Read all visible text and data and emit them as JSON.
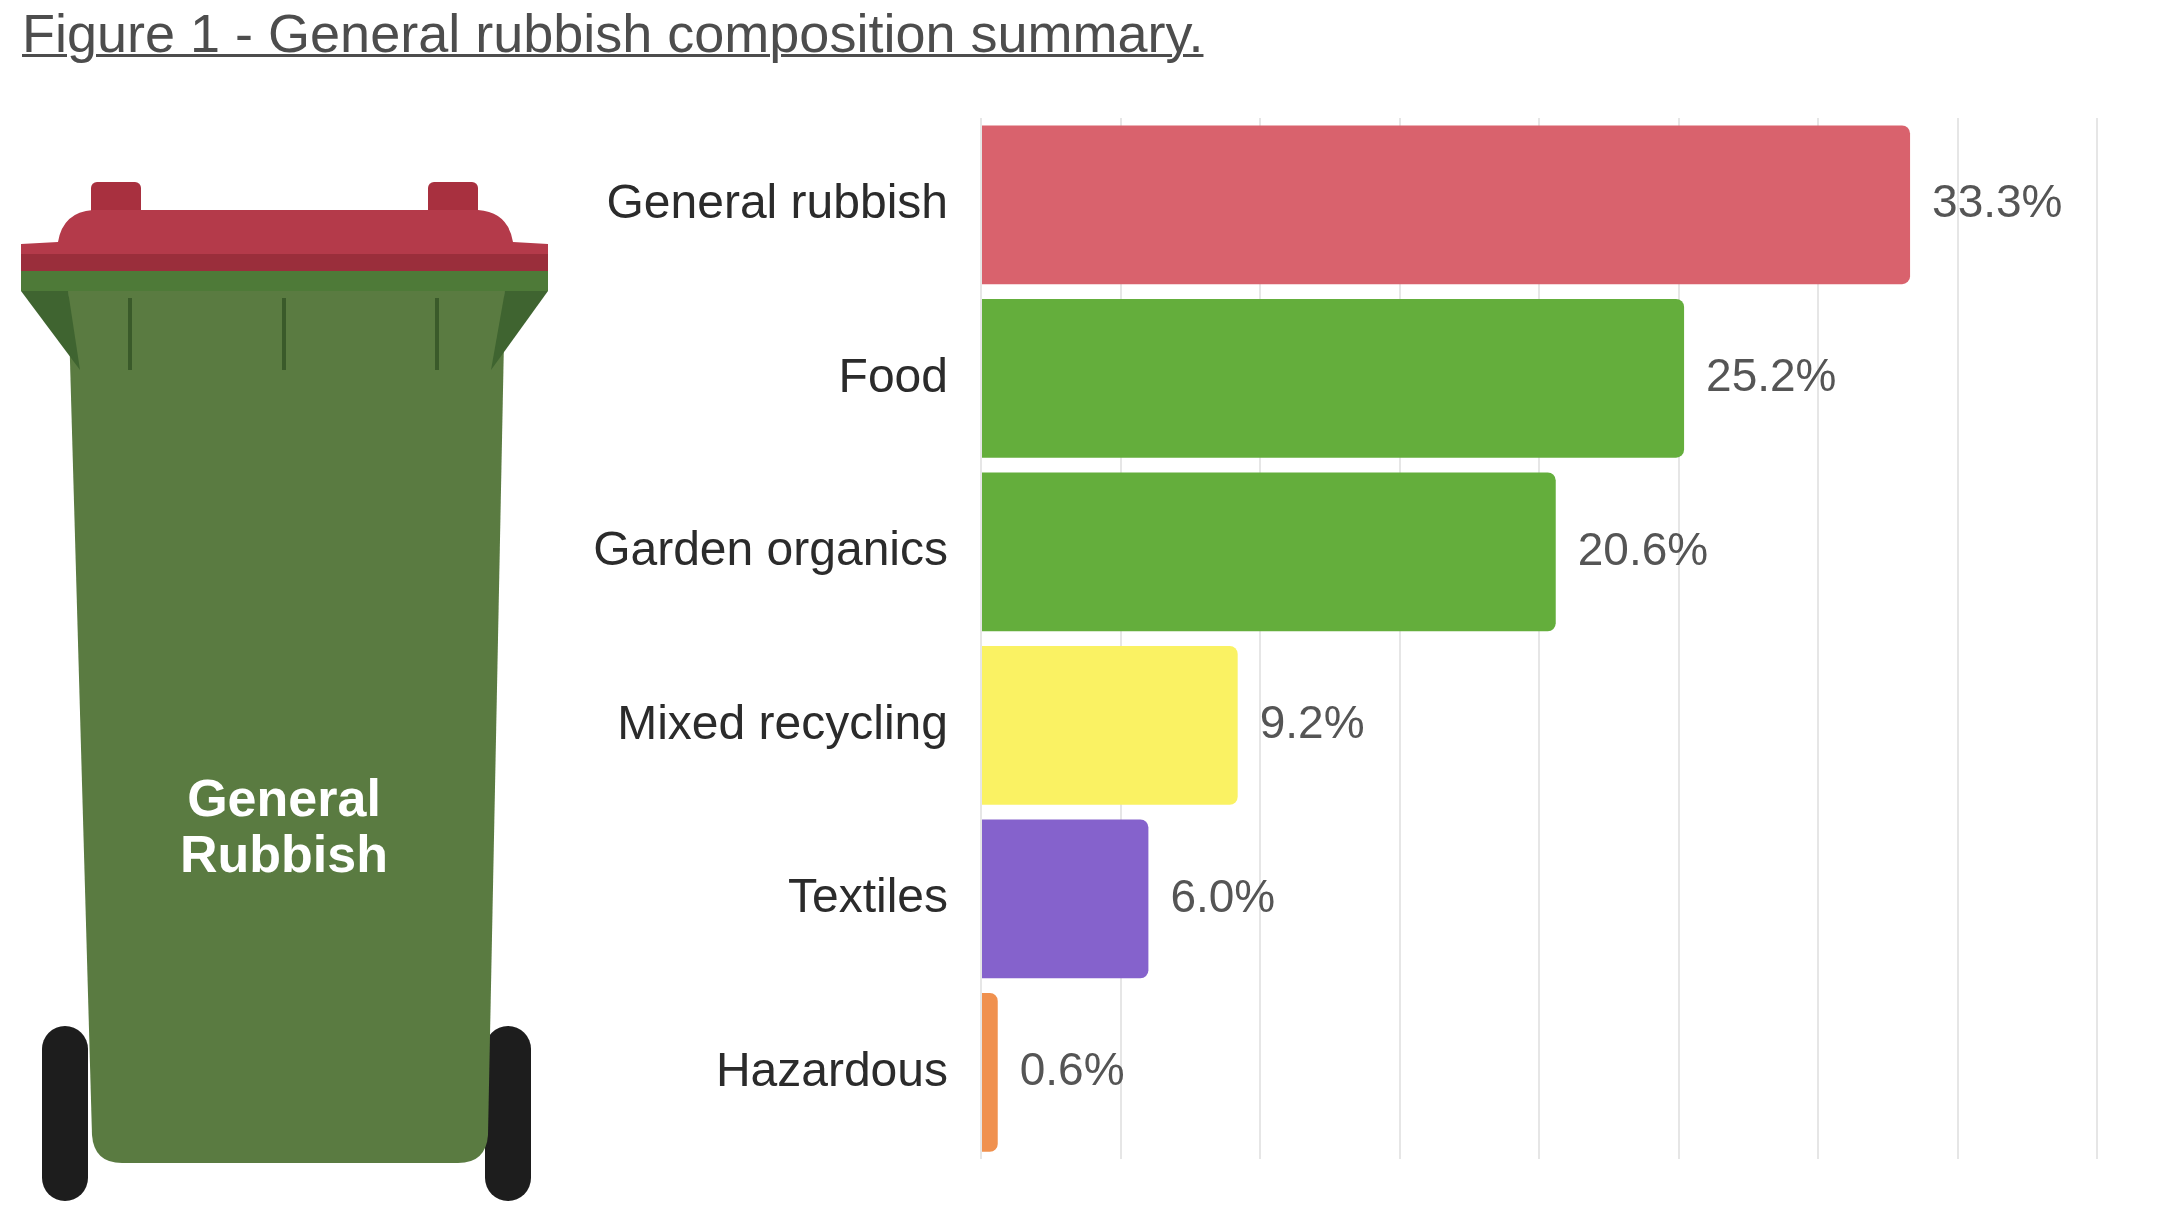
{
  "chart_data": {
    "type": "bar",
    "title": "Figure 1 - General rubbish composition summary.",
    "orientation": "horizontal",
    "categories": [
      "General rubbish",
      "Food",
      "Garden organics",
      "Mixed recycling",
      "Textiles",
      "Hazardous"
    ],
    "values": [
      33.3,
      25.2,
      20.6,
      9.2,
      6.0,
      0.6
    ],
    "colors": [
      "#d9626d",
      "#64ae3c",
      "#64ae3c",
      "#faf263",
      "#8562cc",
      "#f0914f"
    ],
    "value_labels": [
      "33.3%",
      "25.2%",
      "20.6%",
      "9.2%",
      "6.0%",
      "0.6%"
    ],
    "xlim": [
      0,
      40
    ],
    "xticks": [
      {
        "value": 0,
        "label": null
      },
      {
        "value": 5,
        "label": null
      },
      {
        "value": 10,
        "label": null
      },
      {
        "value": 15,
        "label": null
      },
      {
        "value": 20,
        "label": null
      },
      {
        "value": 25,
        "label": null
      },
      {
        "value": 30,
        "label": null
      },
      {
        "value": 35,
        "label": null
      },
      {
        "value": 40,
        "label": null
      }
    ],
    "grid": "x",
    "tick_labels": "y",
    "annotations": [
      "General Rubbish"
    ]
  }
}
